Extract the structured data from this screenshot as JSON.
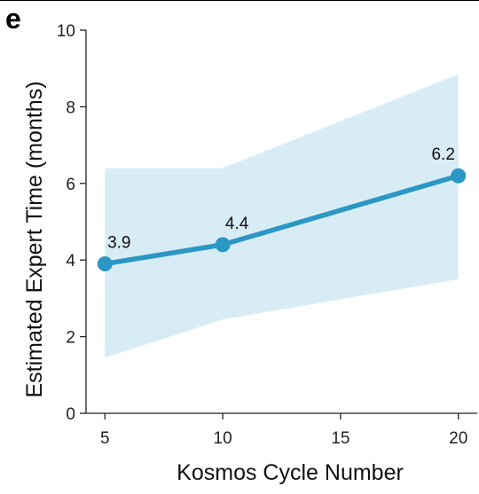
{
  "panel_label": "e",
  "colors": {
    "line": "#2b97c4",
    "band": "#d8ecf6",
    "axis": "#222222"
  },
  "chart_data": {
    "type": "line",
    "x": [
      5,
      10,
      20
    ],
    "series": [
      {
        "values": [
          3.9,
          4.4,
          6.2
        ],
        "labels": [
          "3.9",
          "4.4",
          "6.2"
        ],
        "band_lower": [
          1.45,
          2.45,
          3.5
        ],
        "band_upper": [
          6.4,
          6.4,
          8.85
        ]
      }
    ],
    "xlabel": "Kosmos Cycle Number",
    "ylabel": "Estimated Expert Time (months)",
    "xlim": [
      4.2,
      20.8
    ],
    "ylim": [
      0,
      10
    ],
    "xticks": [
      5,
      10,
      15,
      20
    ],
    "xtick_labels": [
      "5",
      "10",
      "15",
      "20"
    ],
    "yticks": [
      0,
      2,
      4,
      6,
      8,
      10
    ],
    "ytick_labels": [
      "0",
      "2",
      "4",
      "6",
      "8",
      "10"
    ],
    "grid": false,
    "legend": "none"
  }
}
